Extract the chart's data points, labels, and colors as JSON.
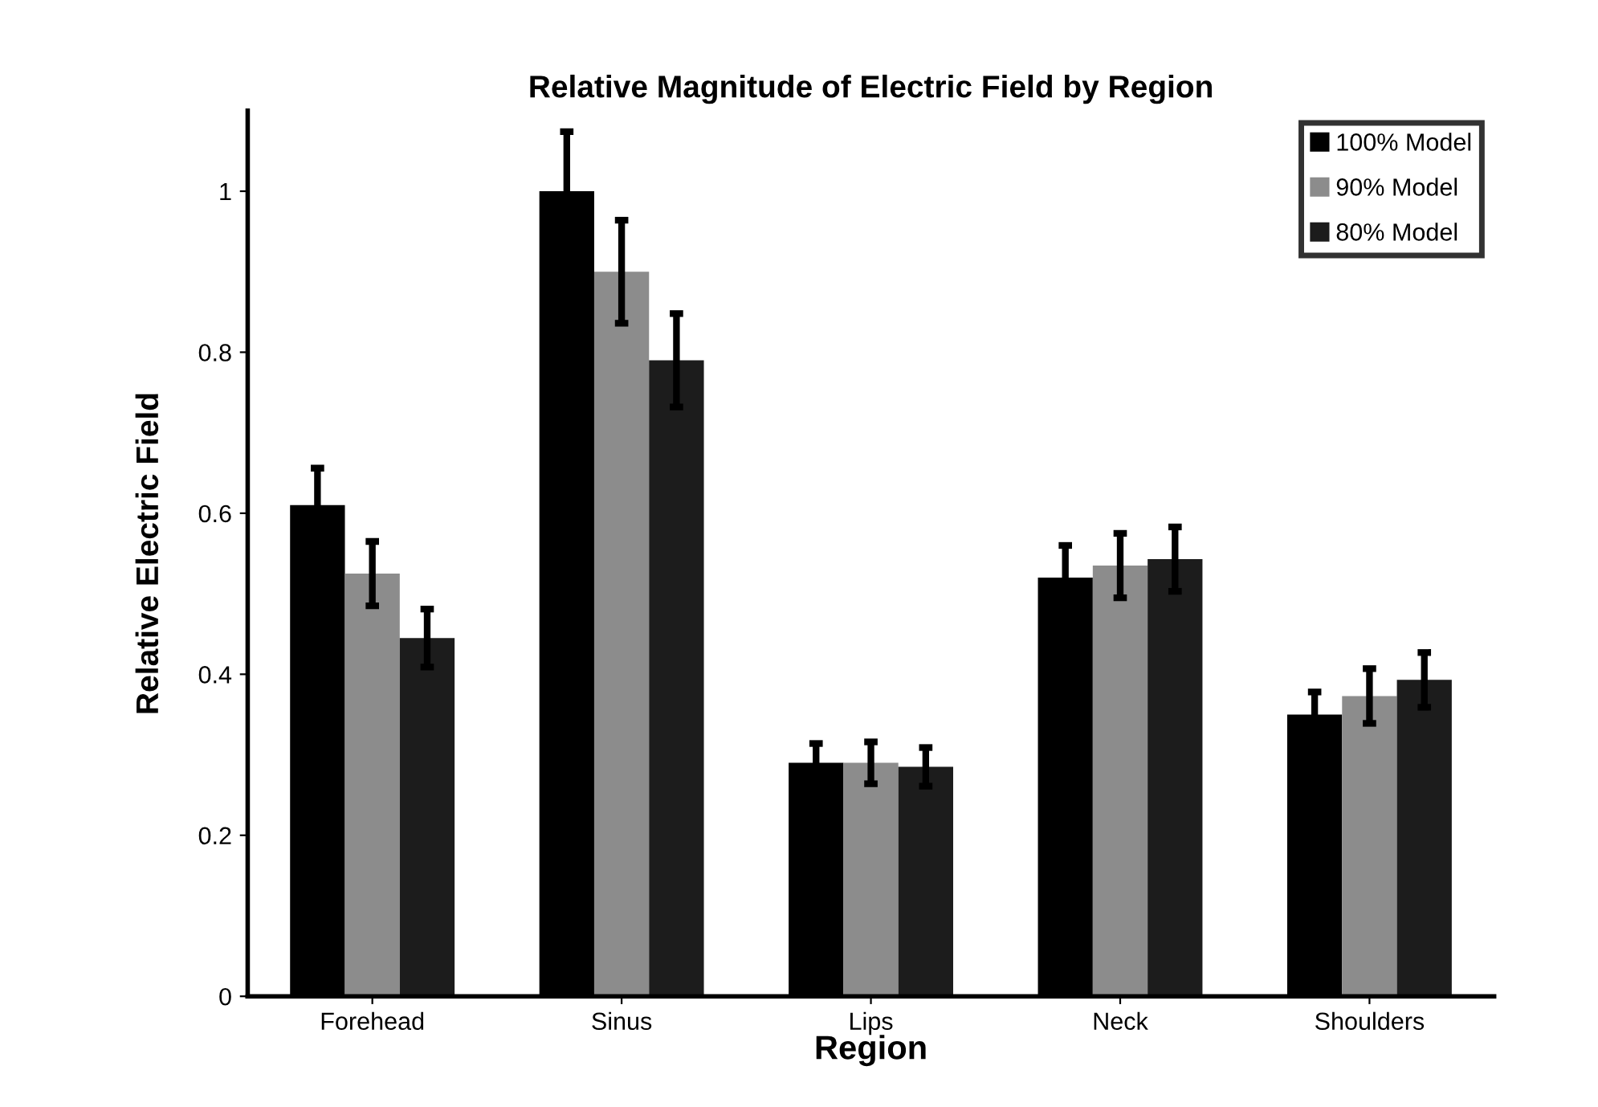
{
  "chart_data": {
    "type": "bar",
    "title": "Relative Magnitude of Electric Field by Region",
    "xlabel": "Region",
    "ylabel": "Relative Electric Field",
    "categories": [
      "Forehead",
      "Sinus",
      "Lips",
      "Neck",
      "Shoulders"
    ],
    "series": [
      {
        "name": "100% Model",
        "color": "#000000",
        "values": [
          0.61,
          1.0,
          0.29,
          0.52,
          0.35
        ],
        "errors": [
          0.046,
          0.074,
          0.024,
          0.04,
          0.028
        ]
      },
      {
        "name": "90% Model",
        "color": "#8c8c8c",
        "values": [
          0.525,
          0.9,
          0.29,
          0.535,
          0.373
        ],
        "errors": [
          0.04,
          0.064,
          0.026,
          0.04,
          0.034
        ]
      },
      {
        "name": "80% Model",
        "color": "#1c1c1c",
        "values": [
          0.445,
          0.79,
          0.285,
          0.543,
          0.393
        ],
        "errors": [
          0.036,
          0.058,
          0.024,
          0.04,
          0.034
        ]
      }
    ],
    "ylim": [
      0,
      1.1
    ],
    "yticks": [
      0,
      0.2,
      0.4,
      0.6,
      0.8,
      1
    ],
    "grid": false,
    "legend": "top right"
  }
}
